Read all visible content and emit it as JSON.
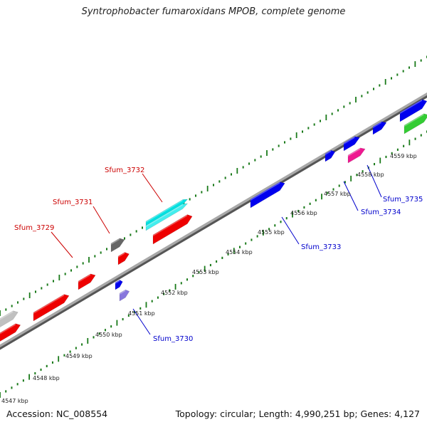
{
  "title": "Syntrophobacter fumaroxidans MPOB, complete genome",
  "accession": "Accession: NC_008554",
  "summary": "Topology: circular; Length: 4,990,251 bp; Genes: 4,127",
  "colors": {
    "backbone": "#888888",
    "tick": "#1a7a1a",
    "forward_label": "#cc0000",
    "reverse_label": "#0000cc",
    "red_gene": "#ee0000",
    "blue_gene": "#0000ee",
    "cyan_gene": "#00e0e0",
    "gray_gene": "#666666",
    "lightgray_gene": "#c0c0c0",
    "magenta_gene": "#ee1890",
    "green_gene": "#33cc33",
    "lavender_gene": "#8877dd"
  },
  "scale_labels": [
    "4547 kbp",
    "4548 kbp",
    "4549 kbp",
    "4550 kbp",
    "4551 kbp",
    "4552 kbp",
    "4553 kbp",
    "4554 kbp",
    "4555 kbp",
    "4556 kbp",
    "4557 kbp",
    "4558 kbp",
    "4559 kbp"
  ],
  "gene_labels": {
    "Sfum_3729": "Sfum_3729",
    "Sfum_3730": "Sfum_3730",
    "Sfum_3731": "Sfum_3731",
    "Sfum_3732": "Sfum_3732",
    "Sfum_3733": "Sfum_3733",
    "Sfum_3734": "Sfum_3734",
    "Sfum_3735": "Sfum_3735"
  }
}
